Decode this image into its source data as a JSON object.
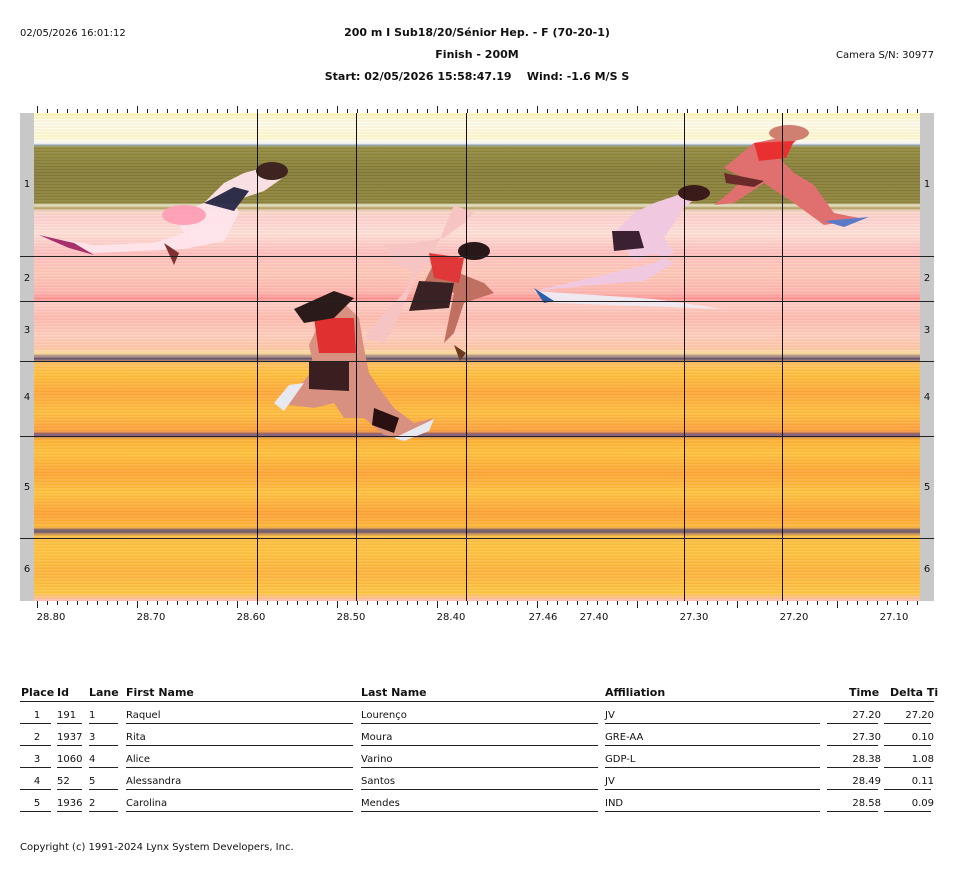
{
  "header": {
    "timestamp": "02/05/2026 16:01:12",
    "event_title": "200 m I Sub18/20/Sénior Hep. - F (70-20-1)",
    "subtitle": "Finish - 200M",
    "start_wind": "Start: 02/05/2026 15:58:47.19    Wind: -1.6 M/S S",
    "camera": "Camera S/N: 30977"
  },
  "lanes": [
    "1",
    "2",
    "3",
    "4",
    "5",
    "6"
  ],
  "time_axis": [
    "28.80",
    "28.70",
    "28.60",
    "28.50",
    "28.40",
    "27.46",
    "27.40",
    "27.30",
    "27.20",
    "27.10"
  ],
  "table": {
    "headers": [
      "Place",
      "Id",
      "Lane",
      "First Name",
      "Last Name",
      "Affiliation",
      "Time",
      "Delta Ti"
    ],
    "rows": [
      {
        "place": "1",
        "id": "191",
        "lane": "1",
        "first": "Raquel",
        "last": "Lourenço",
        "aff": "JV",
        "time": "27.20",
        "delta": "27.20"
      },
      {
        "place": "2",
        "id": "1937",
        "lane": "3",
        "first": "Rita",
        "last": "Moura",
        "aff": "GRE-AA",
        "time": "27.30",
        "delta": "0.10"
      },
      {
        "place": "3",
        "id": "1060",
        "lane": "4",
        "first": "Alice",
        "last": "Varino",
        "aff": "GDP-L",
        "time": "28.38",
        "delta": "1.08"
      },
      {
        "place": "4",
        "id": "52",
        "lane": "5",
        "first": "Alessandra",
        "last": "Santos",
        "aff": "JV",
        "time": "28.49",
        "delta": "0.11"
      },
      {
        "place": "5",
        "id": "1936",
        "lane": "2",
        "first": "Carolina",
        "last": "Mendes",
        "aff": "IND",
        "time": "28.58",
        "delta": "0.09"
      }
    ]
  },
  "footer": {
    "copyright": "Copyright (c) 1991-2024 Lynx System Developers, Inc."
  }
}
